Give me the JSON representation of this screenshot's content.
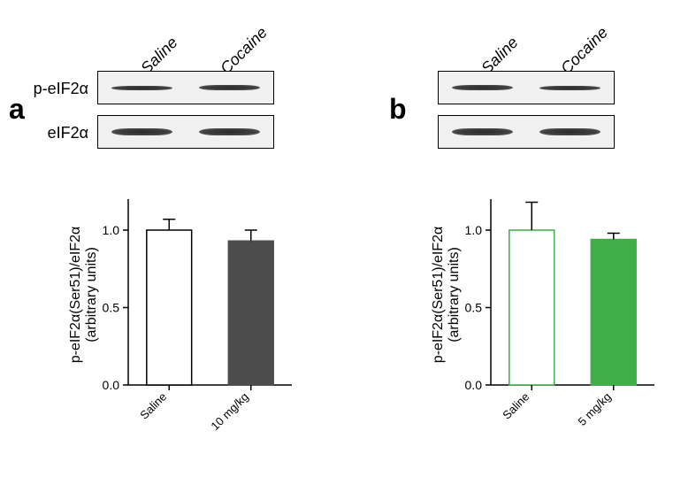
{
  "panels": {
    "a": {
      "label": "a",
      "groups": [
        "Saline",
        "Cocaine"
      ],
      "rows": [
        {
          "name": "p-eIF2α",
          "band_heights": [
            5,
            6
          ]
        },
        {
          "name": "eIF2α",
          "band_heights": [
            8,
            8
          ]
        }
      ],
      "chart": {
        "type": "bar",
        "ylabel_line1": "p-eIF2α(Ser51)/eIF2α",
        "ylabel_line2": "(arbitrary units)",
        "ylim": [
          0,
          1.2
        ],
        "yticks": [
          0.0,
          0.5,
          1.0
        ],
        "bars": [
          {
            "label": "Saline",
            "value": 1.0,
            "err": 0.07,
            "fill": "#ffffff",
            "stroke": "#000000"
          },
          {
            "label": "10 mg/kg",
            "value": 0.93,
            "err": 0.07,
            "fill": "#4c4c4c",
            "stroke": "#4c4c4c"
          }
        ],
        "axis_color": "#000000",
        "label_fontsize": 15,
        "tick_fontsize": 14,
        "bar_width": 0.55,
        "background_color": "#ffffff"
      }
    },
    "b": {
      "label": "b",
      "groups": [
        "Saline",
        "Cocaine"
      ],
      "rows": [
        {
          "name": "",
          "band_heights": [
            6,
            5
          ]
        },
        {
          "name": "",
          "band_heights": [
            8,
            8
          ]
        }
      ],
      "chart": {
        "type": "bar",
        "ylabel_line1": "p-eIF2α(Ser51)/eIF2α",
        "ylabel_line2": "(arbitrary units)",
        "ylim": [
          0,
          1.2
        ],
        "yticks": [
          0.0,
          0.5,
          1.0
        ],
        "bars": [
          {
            "label": "Saline",
            "value": 1.0,
            "err": 0.18,
            "fill": "#ffffff",
            "stroke": "#3fae49"
          },
          {
            "label": "5 mg/kg",
            "value": 0.94,
            "err": 0.04,
            "fill": "#3fae49",
            "stroke": "#3fae49"
          }
        ],
        "axis_color": "#000000",
        "label_fontsize": 15,
        "tick_fontsize": 14,
        "bar_width": 0.55,
        "background_color": "#ffffff"
      }
    }
  }
}
